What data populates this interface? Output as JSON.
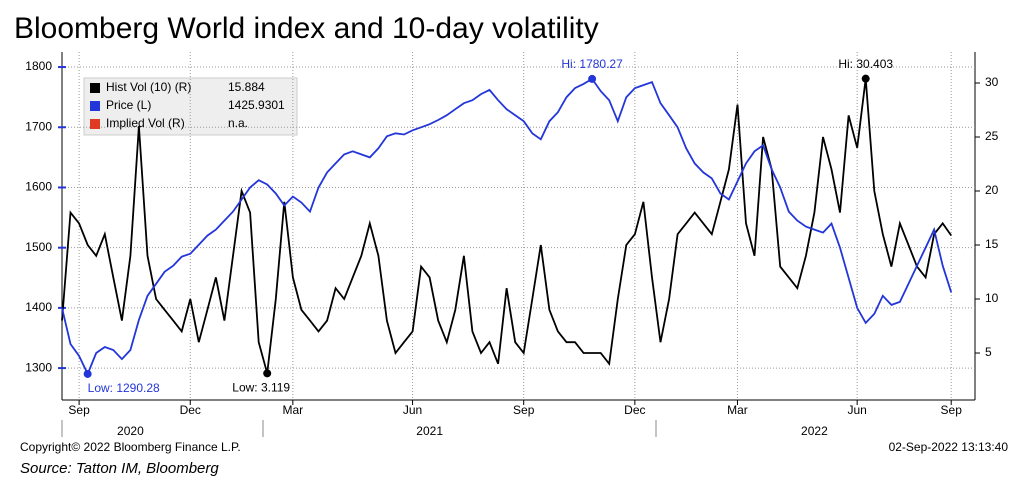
{
  "chart_data": {
    "type": "line",
    "title": "Bloomberg World index and 10-day volatility",
    "categories": [
      null,
      null,
      "Sep",
      null,
      null,
      null,
      null,
      null,
      null,
      null,
      null,
      null,
      null,
      null,
      null,
      "Dec",
      null,
      null,
      null,
      null,
      null,
      null,
      null,
      null,
      null,
      null,
      null,
      "Mar",
      null,
      null,
      null,
      null,
      null,
      null,
      null,
      null,
      null,
      null,
      null,
      null,
      null,
      "Jun",
      null,
      null,
      null,
      null,
      null,
      null,
      null,
      null,
      null,
      null,
      null,
      null,
      "Sep",
      null,
      null,
      null,
      null,
      null,
      null,
      null,
      null,
      null,
      null,
      null,
      null,
      "Dec",
      null,
      null,
      null,
      null,
      null,
      null,
      null,
      null,
      null,
      null,
      null,
      "Mar",
      null,
      null,
      null,
      null,
      null,
      null,
      null,
      null,
      null,
      null,
      null,
      null,
      null,
      "Jun",
      null,
      null,
      null,
      null,
      null,
      null,
      null,
      null,
      null,
      null,
      "Sep"
    ],
    "year_categories": [
      null,
      null,
      null,
      null,
      null,
      null,
      null,
      null,
      "2020",
      null,
      null,
      null,
      null,
      null,
      null,
      null,
      null,
      null,
      null,
      null,
      null,
      null,
      null,
      null,
      null,
      null,
      null,
      null,
      null,
      null,
      null,
      null,
      null,
      null,
      null,
      null,
      null,
      null,
      null,
      null,
      null,
      null,
      null,
      "2021",
      null,
      null,
      null,
      null,
      null,
      null,
      null,
      null,
      null,
      null,
      null,
      null,
      null,
      null,
      null,
      null,
      null,
      null,
      null,
      null,
      null,
      null,
      null,
      null,
      null,
      null,
      null,
      null,
      null,
      null,
      null,
      null,
      null,
      null,
      null,
      null,
      null,
      null,
      null,
      null,
      null,
      null,
      null,
      null,
      "2022",
      null,
      null,
      null,
      null,
      null,
      null,
      null,
      null,
      null,
      null,
      null,
      null,
      null,
      null,
      null,
      null
    ],
    "ylim": [
      1247,
      1825
    ],
    "yticks": [
      1300,
      1400,
      1500,
      1600,
      1700,
      1800
    ],
    "y2lim": [
      0.65,
      32.87
    ],
    "y2ticks": [
      5,
      10,
      15,
      20,
      25,
      30
    ],
    "grid": true,
    "series": [
      {
        "name": "Hist Vol (10) (R)",
        "color": "#000000",
        "axis": "y2",
        "legend_value": "15.884",
        "high_label": "Hi: 30.403",
        "low_label": "Low: 3.119",
        "values": [
          8,
          18,
          17,
          15,
          14,
          16,
          12,
          8,
          14,
          26,
          14,
          10,
          9,
          8,
          7,
          10,
          6,
          9,
          12,
          8,
          14,
          20,
          18,
          6,
          3.119,
          10,
          19,
          12,
          9,
          8,
          7,
          8,
          11,
          10,
          12,
          14,
          17,
          14,
          8,
          5,
          6,
          7,
          13,
          12,
          8,
          6,
          9,
          14,
          7,
          5,
          6,
          4,
          11,
          6,
          5,
          10,
          15,
          9,
          7,
          6,
          6,
          5,
          5,
          5,
          4,
          10,
          15,
          16,
          19,
          12,
          6,
          10,
          16,
          17,
          18,
          17,
          16,
          19,
          22,
          28,
          17,
          14,
          25,
          22,
          13,
          12,
          11,
          14,
          18,
          25,
          22,
          18,
          27,
          24,
          30.403,
          20,
          16,
          13,
          17,
          15,
          13,
          12,
          16,
          17,
          15.884
        ]
      },
      {
        "name": "Price (L)",
        "color": "#2336d9",
        "legend_value": "1425.9301",
        "high_label": "Hi: 1780.27",
        "low_label": "Low: 1290.28",
        "values": [
          1400,
          1340,
          1320,
          1290.28,
          1325,
          1335,
          1330,
          1315,
          1330,
          1380,
          1420,
          1440,
          1460,
          1470,
          1485,
          1490,
          1505,
          1520,
          1530,
          1545,
          1560,
          1580,
          1600,
          1612,
          1605,
          1590,
          1570,
          1585,
          1575,
          1560,
          1600,
          1625,
          1640,
          1655,
          1660,
          1655,
          1650,
          1665,
          1685,
          1690,
          1688,
          1695,
          1700,
          1705,
          1712,
          1720,
          1730,
          1740,
          1745,
          1755,
          1762,
          1745,
          1730,
          1720,
          1710,
          1690,
          1680,
          1710,
          1725,
          1750,
          1765,
          1772,
          1780.27,
          1760,
          1745,
          1710,
          1750,
          1765,
          1770,
          1775,
          1740,
          1720,
          1700,
          1665,
          1640,
          1625,
          1615,
          1590,
          1580,
          1610,
          1640,
          1660,
          1670,
          1630,
          1600,
          1560,
          1545,
          1535,
          1530,
          1525,
          1540,
          1500,
          1450,
          1400,
          1375,
          1390,
          1420,
          1405,
          1410,
          1440,
          1470,
          1500,
          1530,
          1470,
          1425.9301
        ]
      },
      {
        "name": "Implied Vol (R)",
        "color": "#e03a22",
        "axis": "y2",
        "legend_value": "n.a.",
        "values": [
          null,
          null,
          null,
          null,
          null,
          null,
          null,
          null,
          null,
          null,
          null,
          null,
          null,
          null,
          null,
          null,
          null,
          null,
          null,
          null,
          null,
          null,
          null,
          null,
          null,
          null,
          null,
          null,
          null,
          null,
          null,
          null,
          null,
          null,
          null,
          null,
          null,
          null,
          null,
          null,
          null,
          null,
          null,
          null,
          null,
          null,
          null,
          null,
          null,
          null,
          null,
          null,
          null,
          null,
          null,
          null,
          null,
          null,
          null,
          null,
          null,
          null,
          null,
          null,
          null,
          null,
          null,
          null,
          null,
          null,
          null,
          null,
          null,
          null,
          null,
          null,
          null,
          null,
          null,
          null,
          null,
          null,
          null,
          null,
          null,
          null,
          null,
          null,
          null,
          null,
          null,
          null,
          null,
          null,
          null,
          null,
          null,
          null,
          null,
          null,
          null,
          null,
          null,
          null,
          null
        ]
      }
    ],
    "copyright": "Copyright© 2022 Bloomberg Finance L.P.",
    "timestamp": "02-Sep-2022 13:13:40",
    "source": "Source: Tatton IM, Bloomberg"
  }
}
